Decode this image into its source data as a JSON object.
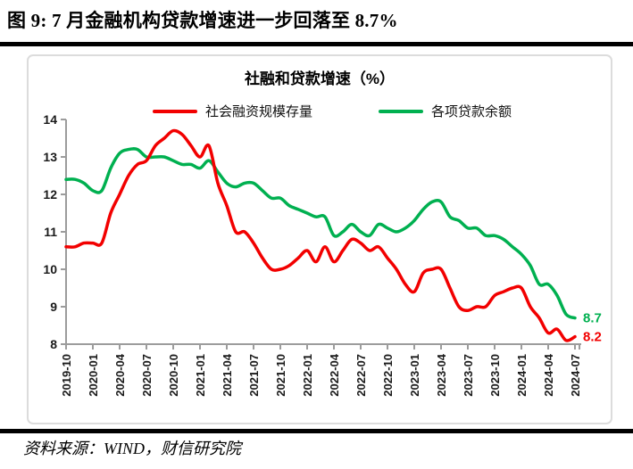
{
  "page": {
    "figure_title": "图 9: 7 月金融机构贷款增速进一步回落至 8.7%",
    "source_note": "资料来源：WIND，财信研究院"
  },
  "chart_data": {
    "type": "line",
    "title": "社融和贷款增速（%）",
    "xlabel": "",
    "ylabel": "",
    "ylim": [
      8,
      14
    ],
    "yticks": [
      8,
      9,
      10,
      11,
      12,
      13,
      14
    ],
    "x_label_every": 3,
    "grid": false,
    "legend_position": "top",
    "axis_color": "#9c9c9c",
    "tick_label_color": "#1a1a1a",
    "x": [
      "2019-10",
      "2019-11",
      "2019-12",
      "2020-01",
      "2020-02",
      "2020-03",
      "2020-04",
      "2020-05",
      "2020-06",
      "2020-07",
      "2020-08",
      "2020-09",
      "2020-10",
      "2020-11",
      "2020-12",
      "2021-01",
      "2021-02",
      "2021-03",
      "2021-04",
      "2021-05",
      "2021-06",
      "2021-07",
      "2021-08",
      "2021-09",
      "2021-10",
      "2021-11",
      "2021-12",
      "2022-01",
      "2022-02",
      "2022-03",
      "2022-04",
      "2022-05",
      "2022-06",
      "2022-07",
      "2022-08",
      "2022-09",
      "2022-10",
      "2022-11",
      "2022-12",
      "2023-01",
      "2023-02",
      "2023-03",
      "2023-04",
      "2023-05",
      "2023-06",
      "2023-07",
      "2023-08",
      "2023-09",
      "2023-10",
      "2023-11",
      "2023-12",
      "2024-01",
      "2024-02",
      "2024-03",
      "2024-04",
      "2024-05",
      "2024-06",
      "2024-07"
    ],
    "series": [
      {
        "name": "社会融资规模存量",
        "color": "#f20000",
        "end_label": "8.2",
        "values": [
          10.6,
          10.6,
          10.7,
          10.7,
          10.7,
          11.5,
          12.0,
          12.5,
          12.8,
          12.9,
          13.3,
          13.5,
          13.7,
          13.6,
          13.3,
          13.0,
          13.3,
          12.3,
          11.7,
          11.0,
          11.0,
          10.7,
          10.3,
          10.0,
          10.0,
          10.1,
          10.3,
          10.5,
          10.2,
          10.6,
          10.2,
          10.5,
          10.8,
          10.7,
          10.5,
          10.6,
          10.3,
          10.0,
          9.6,
          9.4,
          9.9,
          10.0,
          10.0,
          9.5,
          9.0,
          8.9,
          9.0,
          9.0,
          9.3,
          9.4,
          9.5,
          9.5,
          9.0,
          8.7,
          8.3,
          8.4,
          8.1,
          8.2
        ]
      },
      {
        "name": "各项贷款余额",
        "color": "#00b050",
        "end_label": "8.7",
        "values": [
          12.4,
          12.4,
          12.3,
          12.1,
          12.1,
          12.7,
          13.1,
          13.2,
          13.2,
          13.0,
          13.0,
          13.0,
          12.9,
          12.8,
          12.8,
          12.7,
          12.9,
          12.6,
          12.3,
          12.2,
          12.3,
          12.3,
          12.1,
          11.9,
          11.9,
          11.7,
          11.6,
          11.5,
          11.4,
          11.4,
          10.9,
          11.0,
          11.2,
          11.0,
          10.9,
          11.2,
          11.1,
          11.0,
          11.1,
          11.3,
          11.6,
          11.8,
          11.8,
          11.4,
          11.3,
          11.1,
          11.1,
          10.9,
          10.9,
          10.8,
          10.6,
          10.4,
          10.1,
          9.6,
          9.6,
          9.3,
          8.8,
          8.7
        ]
      }
    ]
  }
}
